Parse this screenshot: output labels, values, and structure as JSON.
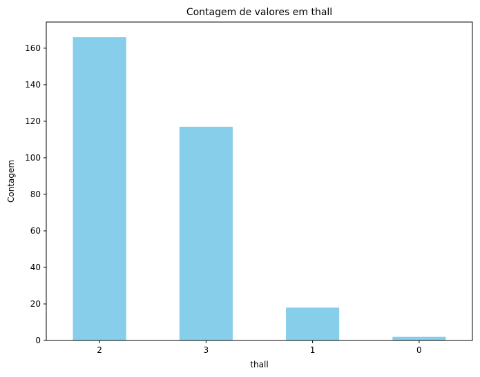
{
  "chart_data": {
    "type": "bar",
    "title": "Contagem de valores em thall",
    "xlabel": "thall",
    "ylabel": "Contagem",
    "categories": [
      "2",
      "3",
      "1",
      "0"
    ],
    "values": [
      166,
      117,
      18,
      2
    ],
    "ylim": [
      0,
      174.3
    ],
    "yticks": [
      0,
      20,
      40,
      60,
      80,
      100,
      120,
      140,
      160
    ],
    "bar_color": "#87ceeb",
    "grid": false,
    "legend": "none"
  }
}
